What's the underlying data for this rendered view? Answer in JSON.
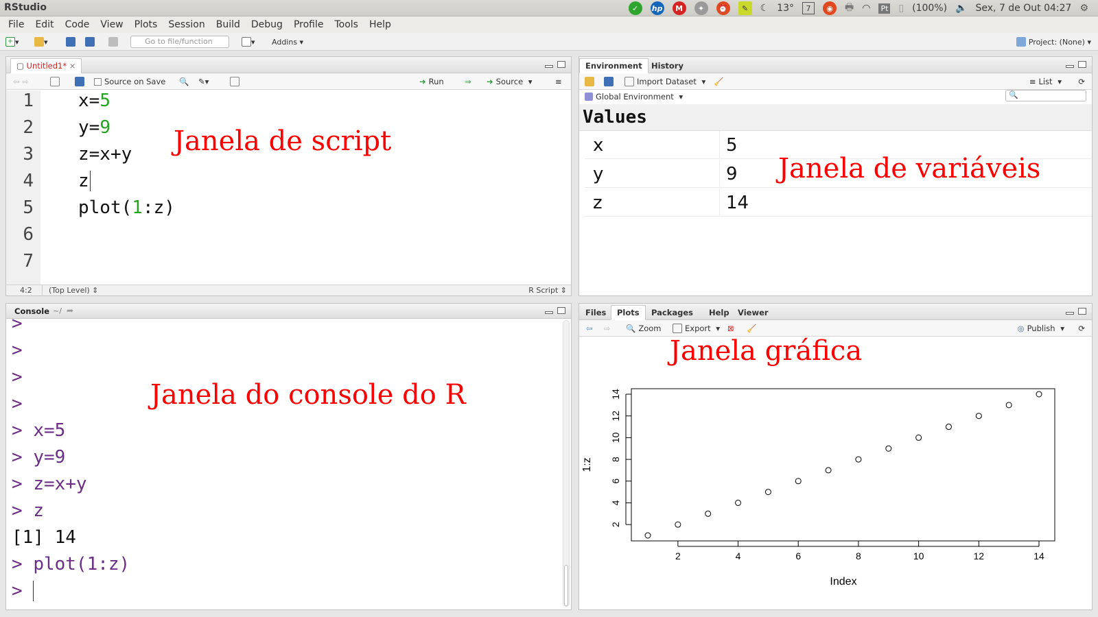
{
  "app": {
    "title": "RStudio"
  },
  "tray": {
    "temperature": "13°",
    "calendar_day": "7",
    "keyboard": "Pt",
    "battery": "(100%)",
    "clock": "Sex, 7 de Out 04:27"
  },
  "menu": {
    "items": [
      "File",
      "Edit",
      "Code",
      "View",
      "Plots",
      "Session",
      "Build",
      "Debug",
      "Profile",
      "Tools",
      "Help"
    ]
  },
  "toolbar": {
    "goto_placeholder": "Go to file/function",
    "addins": "Addins",
    "project": "Project: (None)"
  },
  "editor": {
    "tab": "Untitled1*",
    "source_on_save": "Source on Save",
    "run": "Run",
    "source": "Source",
    "line_numbers": [
      "1",
      "2",
      "3",
      "4",
      "5",
      "6",
      "7"
    ],
    "status_pos": "4:2",
    "status_scope": "(Top Level)",
    "status_type": "R Script",
    "annotation": "Janela de script"
  },
  "environment": {
    "tabs": [
      "Environment",
      "History"
    ],
    "import": "Import Dataset",
    "list": "List",
    "scope": "Global Environment",
    "section": "Values",
    "rows": [
      {
        "name": "x",
        "value": "5"
      },
      {
        "name": "y",
        "value": "9"
      },
      {
        "name": "z",
        "value": "14"
      }
    ],
    "annotation": "Janela de variáveis"
  },
  "console": {
    "title": "Console",
    "path": "~/",
    "prompt": ">",
    "commands": [
      "x=5",
      "y=9",
      "z=x+y",
      "z"
    ],
    "output": "[1] 14",
    "last_command": "plot(1:z)",
    "annotation": "Janela do console do R"
  },
  "plots_pane": {
    "tabs": [
      "Files",
      "Plots",
      "Packages",
      "Help",
      "Viewer"
    ],
    "zoom": "Zoom",
    "export": "Export",
    "publish": "Publish",
    "annotation": "Janela gráfica"
  },
  "chart_data": {
    "type": "scatter",
    "xlabel": "Index",
    "ylabel": "1:z",
    "x": [
      1,
      2,
      3,
      4,
      5,
      6,
      7,
      8,
      9,
      10,
      11,
      12,
      13,
      14
    ],
    "y": [
      1,
      2,
      3,
      4,
      5,
      6,
      7,
      8,
      9,
      10,
      11,
      12,
      13,
      14
    ],
    "xlim": [
      1,
      14
    ],
    "ylim": [
      1,
      14
    ],
    "xticks": [
      2,
      4,
      6,
      8,
      10,
      12,
      14
    ],
    "yticks": [
      2,
      4,
      6,
      8,
      10,
      12,
      14
    ],
    "grid": false
  }
}
